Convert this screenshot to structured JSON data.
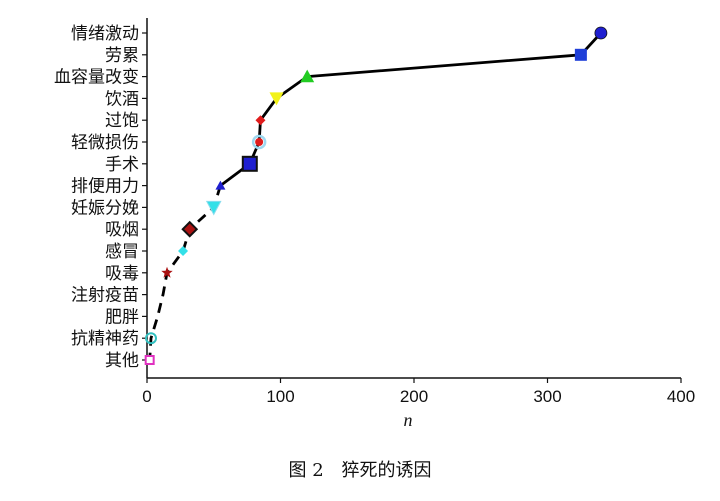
{
  "chart_data": {
    "type": "line",
    "xlabel": "n",
    "xlim": [
      0,
      400
    ],
    "xticks": [
      0,
      100,
      200,
      300,
      400
    ],
    "categories": [
      "情绪激动",
      "劳累",
      "血容量改变",
      "饮酒",
      "过饱",
      "轻微损伤",
      "手术",
      "排便用力",
      "妊娠分娩",
      "吸烟",
      "感冒",
      "吸毒",
      "注射疫苗",
      "肥胖",
      "抗精神药",
      "其他"
    ],
    "series": [
      {
        "values": [
          340,
          325,
          120,
          97,
          85,
          84,
          77,
          55,
          50,
          32,
          27,
          15,
          12,
          8,
          3,
          2
        ],
        "markers": [
          "circle",
          "square",
          "triangle-up",
          "triangle-down",
          "diamond",
          "circle",
          "square",
          "triangle-up",
          "triangle-down",
          "diamond",
          "diamond",
          "star",
          "none",
          "none",
          "circle",
          "square"
        ],
        "colors": [
          "#1f1fd0",
          "#1f3fd8",
          "#22cc22",
          "#f2f21a",
          "#e01c1c",
          "#e01c1c",
          "#1f1fd0",
          "#1f1fd0",
          "#33e0e8",
          "#aa1111",
          "#33e0e8",
          "#aa1111",
          "#000000",
          "#000000",
          "#33c0c0",
          "#e030c0"
        ]
      }
    ],
    "grid": false,
    "legend": "none"
  },
  "caption": {
    "figure": "图 2",
    "title": "猝死的诱因"
  }
}
